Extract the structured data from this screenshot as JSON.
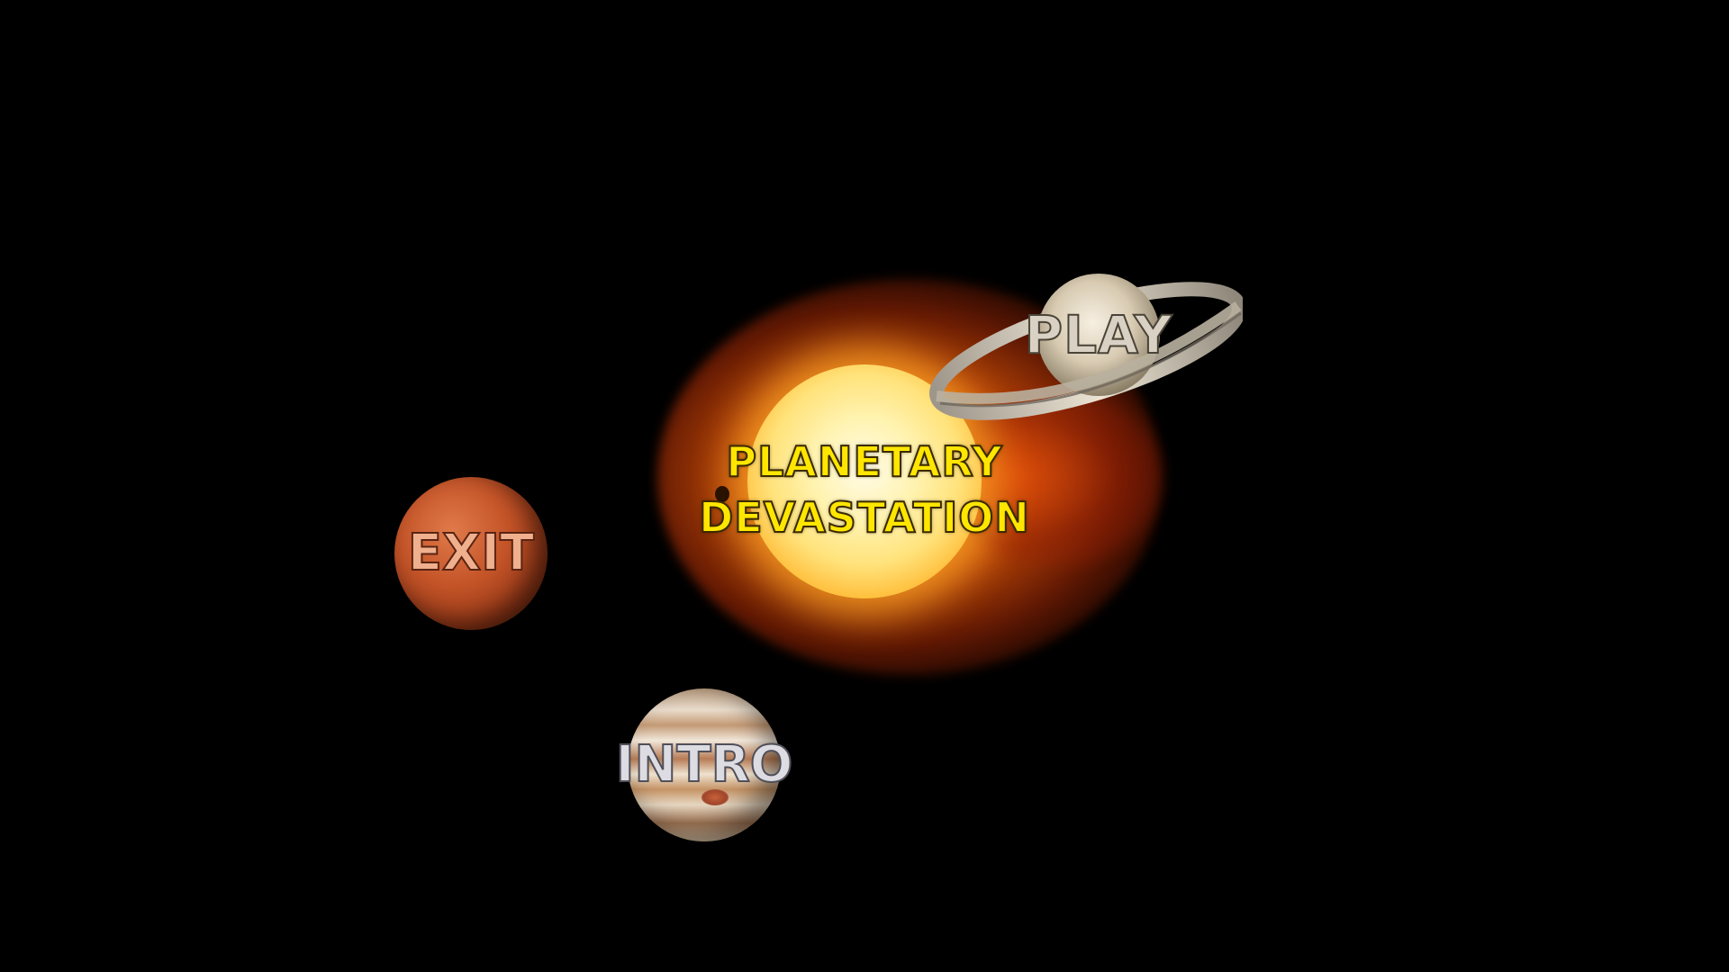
{
  "title": {
    "line1": "PLANETARY",
    "line2": "DEVASTATION"
  },
  "menu": {
    "play_label": "PLAY",
    "exit_label": "EXIT",
    "intro_label": "INTRO"
  },
  "colors": {
    "background": "#000000",
    "title_text": "#ffe600",
    "sun_core": "#fff3b0",
    "sun_corona": "#e65a0a",
    "saturn": "#d9d2c4",
    "mars": "#c45428",
    "jupiter": "#e9dccb"
  },
  "icons": {
    "sun": "sun-icon",
    "saturn": "saturn-icon",
    "mars": "mars-icon",
    "jupiter": "jupiter-icon"
  }
}
